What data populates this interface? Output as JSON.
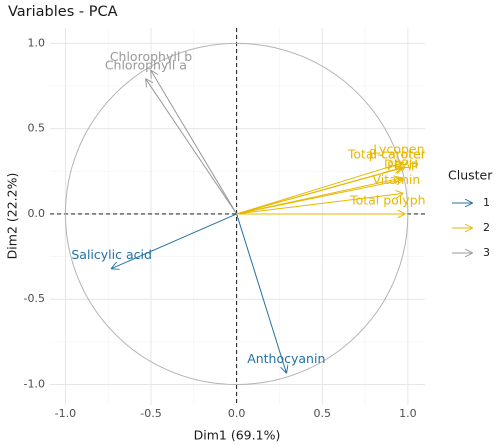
{
  "chart_data": {
    "type": "vector",
    "title": "Variables - PCA",
    "x_label": "Dim1 (69.1%)",
    "y_label": "Dim2 (22.2%)",
    "xlim": [
      -1.09,
      1.1
    ],
    "ylim": [
      -1.12,
      1.09
    ],
    "xticks": [
      {
        "value": -1,
        "label": "-1.0"
      },
      -0.5,
      {
        "value": 0,
        "label": "0.0"
      },
      0.5,
      {
        "value": 1,
        "label": "1.0"
      }
    ],
    "yticks": [
      {
        "value": -1,
        "label": "-1.0"
      },
      -0.5,
      {
        "value": 0,
        "label": "0.0"
      },
      0.5,
      {
        "value": 1,
        "label": "1.0"
      }
    ],
    "grid": true,
    "legend_title": "Cluster",
    "legend_position": "right",
    "series": [
      {
        "name": "1",
        "color": "#2471a3",
        "labels": [
          "Salicylic acid",
          "Anthocyanin"
        ],
        "x": [
          -0.73,
          0.29
        ],
        "values": [
          -0.32,
          -0.93
        ]
      },
      {
        "name": "2",
        "color": "#e7b800",
        "labels": [
          "Lycopene",
          "Total carotenoids",
          "β-carotene",
          "FRAP",
          "DPPH",
          "Vitamin C",
          "Total polyphenols"
        ],
        "x": [
          0.97,
          0.96,
          0.97,
          0.97,
          0.96,
          0.97,
          0.98
        ],
        "values": [
          0.3,
          0.27,
          0.27,
          0.2,
          0.21,
          0.12,
          0.0
        ]
      },
      {
        "name": "3",
        "color": "#999999",
        "labels": [
          "Chlorophyll b",
          "Chlorophyll a"
        ],
        "x": [
          -0.5,
          -0.53
        ],
        "values": [
          0.84,
          0.79
        ]
      }
    ]
  }
}
